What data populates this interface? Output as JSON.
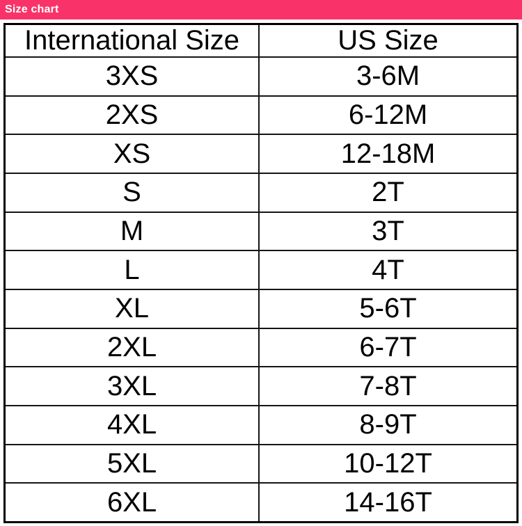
{
  "title_bar": {
    "label": "Size chart"
  },
  "colors": {
    "title_bar_bg": "#f93369",
    "title_bar_text": "#ffffff",
    "table_border": "#000000",
    "cell_text": "#000000",
    "background": "#ffffff"
  },
  "chart_data": {
    "type": "table",
    "title": "Size chart",
    "columns": [
      "International Size",
      "US Size"
    ],
    "rows": [
      [
        "3XS",
        "3-6M"
      ],
      [
        "2XS",
        "6-12M"
      ],
      [
        "XS",
        "12-18M"
      ],
      [
        "S",
        "2T"
      ],
      [
        "M",
        "3T"
      ],
      [
        "L",
        "4T"
      ],
      [
        "XL",
        "5-6T"
      ],
      [
        "2XL",
        "6-7T"
      ],
      [
        "3XL",
        "7-8T"
      ],
      [
        "4XL",
        "8-9T"
      ],
      [
        "5XL",
        "10-12T"
      ],
      [
        "6XL",
        "14-16T"
      ]
    ],
    "layout": {
      "header_row": true,
      "grid": "all-borders",
      "column_alignment": [
        "center",
        "center"
      ]
    }
  }
}
